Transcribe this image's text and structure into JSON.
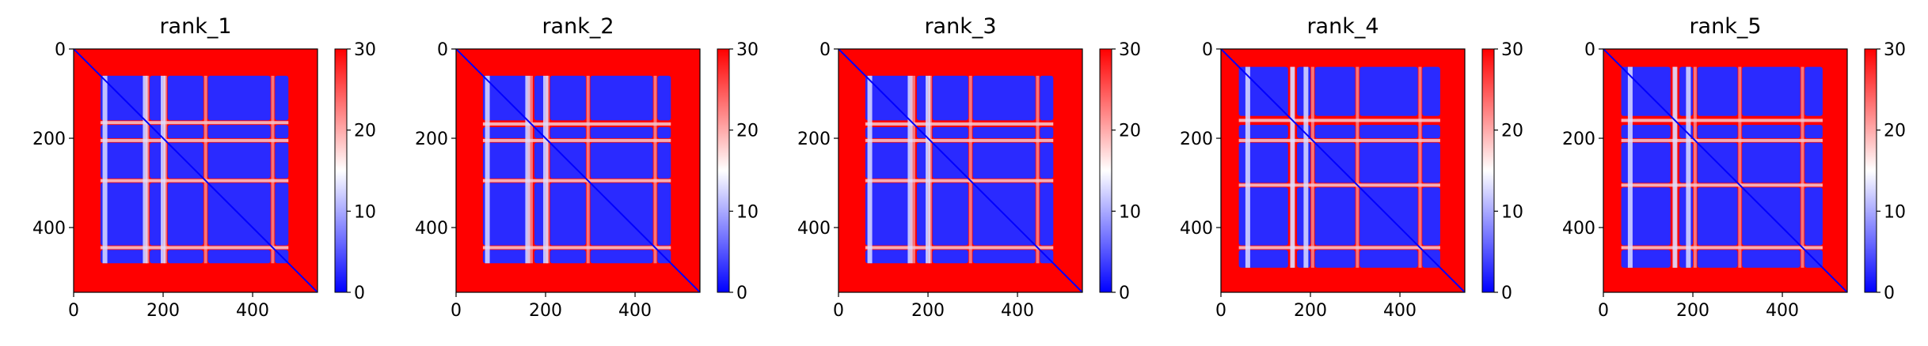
{
  "chart_data": [
    {
      "type": "heatmap",
      "title": "rank_1",
      "x_ticks": [
        "0",
        "200",
        "400"
      ],
      "y_ticks": [
        "0",
        "200",
        "400"
      ],
      "x_tick_values": [
        0,
        200,
        400
      ],
      "y_tick_values": [
        0,
        200,
        400
      ],
      "xlim": [
        0,
        545
      ],
      "ylim": [
        545,
        0
      ],
      "colorbar": {
        "ticks": [
          "0",
          "10",
          "20",
          "30"
        ],
        "tick_values": [
          0,
          10,
          20,
          30
        ],
        "range": [
          0,
          30
        ],
        "colormap": [
          "#0000ff",
          "#ffffff",
          "#ff0000"
        ]
      },
      "blocks": [
        [
          60,
          160
        ],
        [
          170,
          200
        ],
        [
          210,
          290
        ],
        [
          300,
          440
        ],
        [
          450,
          480
        ]
      ],
      "gaps": [
        165,
        205,
        295,
        445
      ],
      "vertical_bands": [
        70,
        160,
        200
      ]
    },
    {
      "type": "heatmap",
      "title": "rank_2",
      "x_ticks": [
        "0",
        "200",
        "400"
      ],
      "y_ticks": [
        "0",
        "200",
        "400"
      ],
      "x_tick_values": [
        0,
        200,
        400
      ],
      "y_tick_values": [
        0,
        200,
        400
      ],
      "xlim": [
        0,
        545
      ],
      "ylim": [
        545,
        0
      ],
      "colorbar": {
        "ticks": [
          "0",
          "10",
          "20",
          "30"
        ],
        "tick_values": [
          0,
          10,
          20,
          30
        ],
        "range": [
          0,
          30
        ],
        "colormap": [
          "#0000ff",
          "#ffffff",
          "#ff0000"
        ]
      },
      "blocks": [
        [
          60,
          160
        ],
        [
          175,
          200
        ],
        [
          210,
          290
        ],
        [
          300,
          440
        ],
        [
          450,
          480
        ]
      ],
      "gaps": [
        168,
        205,
        295,
        445
      ],
      "vertical_bands": [
        70,
        160,
        200
      ]
    },
    {
      "type": "heatmap",
      "title": "rank_3",
      "x_ticks": [
        "0",
        "200",
        "400"
      ],
      "y_ticks": [
        "0",
        "200",
        "400"
      ],
      "x_tick_values": [
        0,
        200,
        400
      ],
      "y_tick_values": [
        0,
        200,
        400
      ],
      "xlim": [
        0,
        545
      ],
      "ylim": [
        545,
        0
      ],
      "colorbar": {
        "ticks": [
          "0",
          "10",
          "20",
          "30"
        ],
        "tick_values": [
          0,
          10,
          20,
          30
        ],
        "range": [
          0,
          30
        ],
        "colormap": [
          "#0000ff",
          "#ffffff",
          "#ff0000"
        ]
      },
      "blocks": [
        [
          60,
          160
        ],
        [
          175,
          200
        ],
        [
          210,
          290
        ],
        [
          300,
          440
        ],
        [
          450,
          480
        ]
      ],
      "gaps": [
        168,
        205,
        295,
        445
      ],
      "vertical_bands": [
        70,
        160,
        200
      ]
    },
    {
      "type": "heatmap",
      "title": "rank_4",
      "x_ticks": [
        "0",
        "200",
        "400"
      ],
      "y_ticks": [
        "0",
        "200",
        "400"
      ],
      "x_tick_values": [
        0,
        200,
        400
      ],
      "y_tick_values": [
        0,
        200,
        400
      ],
      "xlim": [
        0,
        545
      ],
      "ylim": [
        545,
        0
      ],
      "colorbar": {
        "ticks": [
          "0",
          "10",
          "20",
          "30"
        ],
        "tick_values": [
          0,
          10,
          20,
          30
        ],
        "range": [
          0,
          30
        ],
        "colormap": [
          "#0000ff",
          "#ffffff",
          "#ff0000"
        ]
      },
      "blocks": [
        [
          40,
          150
        ],
        [
          170,
          200
        ],
        [
          210,
          300
        ],
        [
          310,
          440
        ],
        [
          450,
          490
        ]
      ],
      "gaps": [
        160,
        205,
        305,
        445
      ],
      "vertical_bands": [
        60,
        160,
        190
      ]
    },
    {
      "type": "heatmap",
      "title": "rank_5",
      "x_ticks": [
        "0",
        "200",
        "400"
      ],
      "y_ticks": [
        "0",
        "200",
        "400"
      ],
      "x_tick_values": [
        0,
        200,
        400
      ],
      "y_tick_values": [
        0,
        200,
        400
      ],
      "xlim": [
        0,
        545
      ],
      "ylim": [
        545,
        0
      ],
      "colorbar": {
        "ticks": [
          "0",
          "10",
          "20",
          "30"
        ],
        "tick_values": [
          0,
          10,
          20,
          30
        ],
        "range": [
          0,
          30
        ],
        "colormap": [
          "#0000ff",
          "#ffffff",
          "#ff0000"
        ]
      },
      "blocks": [
        [
          40,
          150
        ],
        [
          170,
          200
        ],
        [
          210,
          300
        ],
        [
          310,
          440
        ],
        [
          450,
          490
        ]
      ],
      "gaps": [
        160,
        205,
        305,
        445
      ],
      "vertical_bands": [
        60,
        160,
        190
      ]
    }
  ]
}
